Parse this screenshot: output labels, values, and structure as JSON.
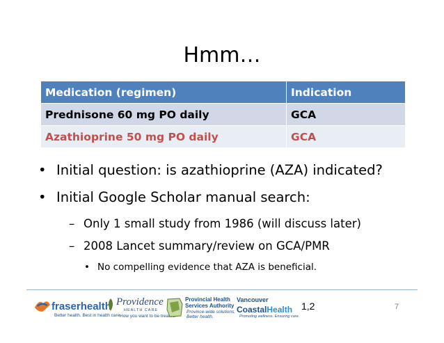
{
  "slide": {
    "title": "Hmm…",
    "page_number": "7",
    "reference": "1,2"
  },
  "table": {
    "headers": [
      "Medication (regimen)",
      "Indication"
    ],
    "rows": [
      [
        "Prednisone 60 mg PO daily",
        "GCA"
      ],
      [
        "Azathioprine 50 mg PO daily",
        "GCA"
      ]
    ]
  },
  "bullets": {
    "b1": "Initial question: is azathioprine (AZA) indicated?",
    "b2": "Initial Google Scholar manual search:",
    "b2a": "Only 1 small study from 1986 (will discuss later)",
    "b2b": "2008 Lancet summary/review on GCA/PMR",
    "b2b1": "No compelling evidence that AZA is beneficial."
  },
  "logos": {
    "fraser": {
      "name_a": "fraser",
      "name_b": "health",
      "tagline": "Better health. Best in health care."
    },
    "providence": {
      "name": "Providence",
      "sub": "HEALTH CARE",
      "tagline": "How you want to be treated."
    },
    "phsa": {
      "line1": "Provincial Health",
      "line2": "Services Authority",
      "tagline1": "Province-wide solutions.",
      "tagline2": "Better health."
    },
    "vch": {
      "line1": "Vancouver",
      "line2a": "Coastal",
      "line2b": "Health",
      "tagline": "Promoting wellness. Ensuring care."
    }
  },
  "colors": {
    "table_header": "#4f81bd",
    "row1": "#d0d8e8",
    "row2": "#e9edf4",
    "row2_text": "#c0504d",
    "rule": "#9bb1d4"
  }
}
